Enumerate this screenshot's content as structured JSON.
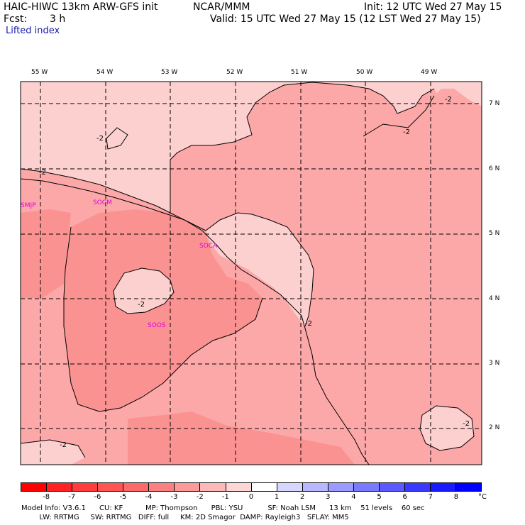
{
  "header": {
    "model": "HAIC-HIWC 13km ARW-GFS init",
    "org": "NCAR/MMM",
    "init": "Init: 12 UTC Wed 27 May 15",
    "fcst_label": "Fcst:",
    "fcst_value": "3 h",
    "valid": "Valid: 15 UTC Wed 27 May 15 (12 LST Wed 27 May 15)",
    "field": "Lifted index"
  },
  "map": {
    "longitude_labels": [
      "55 W",
      "54 W",
      "53 W",
      "52 W",
      "51 W",
      "50 W",
      "49 W"
    ],
    "latitude_labels": [
      "7 N",
      "6 N",
      "5 N",
      "4 N",
      "3 N",
      "2 N"
    ],
    "stations": [
      {
        "id": "SMJP",
        "lon": -55.25,
        "lat": 5.45
      },
      {
        "id": "SOCM",
        "lon": -53.85,
        "lat": 5.45
      },
      {
        "id": "SOCA",
        "lon": -52.35,
        "lat": 4.82
      },
      {
        "id": "SOOS",
        "lon": -53.4,
        "lat": 3.55
      }
    ],
    "contour_labels": [
      "-2",
      "-2",
      "-2",
      "-2",
      "-2",
      "-2",
      "-2",
      "-2"
    ],
    "colors": {
      "li_minus1": "#fdd0d0",
      "li_minus2": "#fca8a8",
      "li_minus3": "#fb9292",
      "coast": "#000000",
      "grid": "#000000"
    }
  },
  "colorbar": {
    "labels": [
      "-8",
      "-7",
      "-6",
      "-5",
      "-4",
      "-3",
      "-2",
      "-1",
      "0",
      "1",
      "2",
      "3",
      "4",
      "5",
      "6",
      "7",
      "8"
    ],
    "unit": "°C",
    "colors": [
      "#ff0000",
      "#ff2222",
      "#ff3d3d",
      "#ff5454",
      "#fb6a6a",
      "#fb8080",
      "#fc9a9a",
      "#fdb8b8",
      "#fdd6d6",
      "#ffffff",
      "#d6d6ff",
      "#b8b8ff",
      "#9a9aff",
      "#7a7aff",
      "#5a5aff",
      "#3a3aff",
      "#1a1aff",
      "#0000ff"
    ]
  },
  "footer": {
    "line1": "Model Info: V3.6.1      CU: KF          MP: Thompson      PBL: YSU           SF: Noah LSM      13 km    51 levels    60 sec",
    "line2": "        LW: RRTMG     SW: RRTMG   DIFF: full     KM: 2D Smagor  DAMP: Rayleigh3   SFLAY: MM5"
  }
}
